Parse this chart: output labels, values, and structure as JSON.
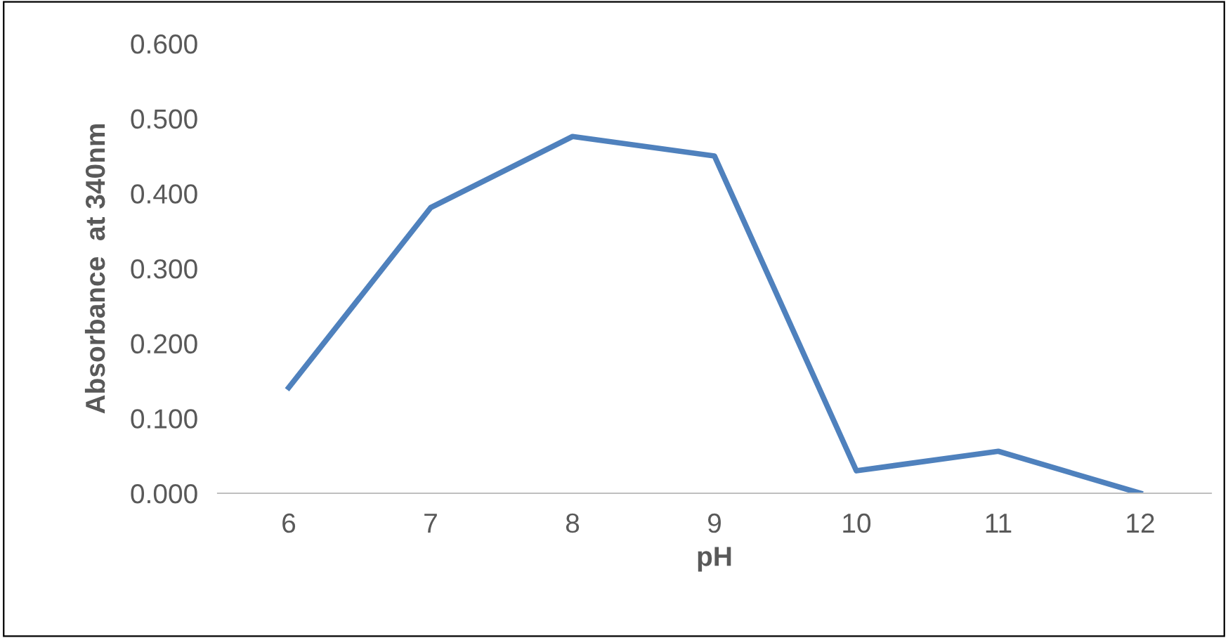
{
  "chart_data": {
    "type": "line",
    "xlabel": "pH",
    "ylabel": "Absorbance  at 340nm",
    "categories": [
      "6",
      "7",
      "8",
      "9",
      "10",
      "11",
      "12"
    ],
    "series": [
      {
        "color": "#4f81bd",
        "values": [
          0.141,
          0.381,
          0.476,
          0.45,
          0.03,
          0.056,
          0.0
        ]
      }
    ],
    "ylim": [
      0,
      0.6
    ],
    "yticks": [
      {
        "value": 0,
        "label": "0.000"
      },
      {
        "value": 0.1,
        "label": "0.100"
      },
      {
        "value": 0.2,
        "label": "0.200"
      },
      {
        "value": 0.3,
        "label": "0.300"
      },
      {
        "value": 0.4,
        "label": "0.400"
      },
      {
        "value": 0.5,
        "label": "0.500"
      },
      {
        "value": 0.6,
        "label": "0.600"
      }
    ],
    "grid": false,
    "legend": false,
    "marker": "none",
    "line_style": "solid"
  }
}
